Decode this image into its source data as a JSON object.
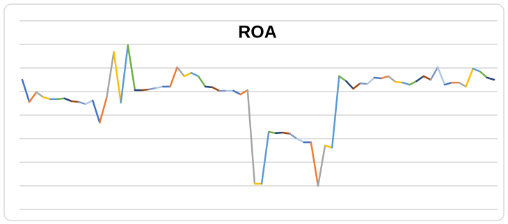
{
  "chart_data": {
    "type": "line",
    "title": "ROA",
    "values": [
      5.5,
      4.56,
      4.97,
      4.76,
      4.68,
      4.68,
      4.71,
      4.59,
      4.56,
      4.47,
      4.62,
      3.68,
      4.76,
      6.68,
      4.53,
      6.97,
      5.06,
      5.06,
      5.09,
      5.15,
      5.21,
      5.21,
      6.03,
      5.65,
      5.79,
      5.65,
      5.21,
      5.18,
      5.03,
      5.03,
      5.03,
      4.88,
      5.06,
      1.09,
      1.09,
      3.29,
      3.24,
      3.26,
      3.21,
      3.0,
      2.85,
      2.85,
      1.0,
      2.71,
      2.62,
      5.65,
      5.44,
      5.12,
      5.35,
      5.32,
      5.59,
      5.56,
      5.65,
      5.41,
      5.38,
      5.29,
      5.44,
      5.65,
      5.5,
      6.03,
      5.29,
      5.38,
      5.38,
      5.21,
      5.97,
      5.85,
      5.59,
      5.5
    ],
    "colors": [
      "#4472c4",
      "#ed7d31",
      "#a5a5a5",
      "#ffc000",
      "#5b9bd5",
      "#70ad47",
      "#264478",
      "#9e480e",
      "#7f98c8",
      "#b4c7e7"
    ],
    "ylim": [
      0,
      8
    ],
    "yticks": [
      0,
      1,
      2,
      3,
      4,
      5,
      6,
      7,
      8
    ],
    "grid": true
  }
}
